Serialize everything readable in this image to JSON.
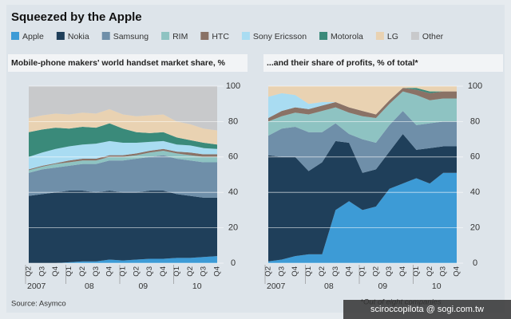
{
  "title": "Squeezed by the Apple",
  "source": "Source: Asymco",
  "footnote": "*Out of eight companies",
  "watermark": "sciroccopilota @ sogi.com.tw",
  "chart_data": [
    {
      "type": "stacked_area",
      "subtitle": "Mobile-phone makers' world handset market share, %",
      "categories": [
        "Q2",
        "Q3",
        "Q4",
        "Q1",
        "Q2",
        "Q3",
        "Q4",
        "Q1",
        "Q2",
        "Q3",
        "Q4",
        "Q1",
        "Q2",
        "Q3",
        "Q4"
      ],
      "category_groups": [
        {
          "label": "2007",
          "count": 3
        },
        {
          "label": "08",
          "count": 4
        },
        {
          "label": "09",
          "count": 4
        },
        {
          "label": "10",
          "count": 4
        }
      ],
      "ylim": [
        0,
        100
      ],
      "yticks": [
        0,
        20,
        40,
        60,
        80,
        100
      ],
      "grid": true,
      "series": [
        {
          "name": "Apple",
          "color": "#3d9bd6",
          "values": [
            0,
            0,
            0,
            0.5,
            1,
            1,
            2,
            1.5,
            2,
            2.5,
            2.5,
            3,
            3,
            3.5,
            4
          ]
        },
        {
          "name": "Nokia",
          "color": "#1f3f5a",
          "values": [
            38,
            39,
            40,
            40.5,
            40,
            39,
            39,
            38.5,
            38,
            38.5,
            38.5,
            36,
            35,
            33.5,
            33
          ]
        },
        {
          "name": "Samsung",
          "color": "#6f8fa9",
          "values": [
            13,
            14,
            14,
            14,
            15,
            16,
            17,
            18,
            19,
            19,
            20,
            20,
            20,
            20,
            20
          ]
        },
        {
          "name": "RIM",
          "color": "#8ec3c2",
          "values": [
            1.5,
            1.5,
            2,
            2,
            2,
            2,
            2,
            2,
            2,
            2.5,
            2.5,
            3,
            3,
            3,
            3
          ]
        },
        {
          "name": "HTC",
          "color": "#8a7266",
          "values": [
            0.5,
            0.5,
            0.5,
            1,
            1,
            1,
            1,
            1,
            1,
            1,
            1,
            1,
            1.5,
            1.5,
            1.5
          ]
        },
        {
          "name": "Sony Ericsson",
          "color": "#a9dcf2",
          "values": [
            7,
            7.5,
            8,
            8,
            8,
            8.5,
            8,
            7,
            6,
            5,
            4.5,
            4,
            4,
            3.5,
            3
          ]
        },
        {
          "name": "Motorola",
          "color": "#3a8a7a",
          "values": [
            14,
            13,
            12,
            10,
            10,
            9,
            10,
            8,
            6,
            5,
            5,
            4,
            3,
            3,
            2.5
          ]
        },
        {
          "name": "LG",
          "color": "#e9d2b2",
          "values": [
            8,
            8,
            8,
            8,
            8,
            8,
            8,
            8,
            9,
            10,
            10,
            9,
            9,
            8,
            8
          ]
        },
        {
          "name": "Other",
          "color": "#c8c9cb",
          "values": [
            18,
            16.5,
            15.5,
            16,
            15,
            15.5,
            13,
            16,
            17,
            16.5,
            16,
            20,
            21.5,
            24,
            25
          ]
        }
      ]
    },
    {
      "type": "stacked_area",
      "subtitle": "...and their share of profits, % of total*",
      "categories": [
        "Q2",
        "Q3",
        "Q4",
        "Q1",
        "Q2",
        "Q3",
        "Q4",
        "Q1",
        "Q2",
        "Q3",
        "Q4",
        "Q1",
        "Q2",
        "Q3",
        "Q4"
      ],
      "category_groups": [
        {
          "label": "2007",
          "count": 3
        },
        {
          "label": "08",
          "count": 4
        },
        {
          "label": "09",
          "count": 4
        },
        {
          "label": "10",
          "count": 4
        }
      ],
      "ylim": [
        0,
        100
      ],
      "yticks": [
        0,
        20,
        40,
        60,
        80,
        100
      ],
      "grid": true,
      "series": [
        {
          "name": "Apple",
          "color": "#3d9bd6",
          "values": [
            1,
            2,
            4,
            5,
            5,
            30,
            35,
            30,
            32,
            42,
            45,
            48,
            45,
            51,
            51
          ]
        },
        {
          "name": "Nokia",
          "color": "#1f3f5a",
          "values": [
            60,
            58,
            56,
            47,
            52,
            39,
            33,
            21,
            21,
            21,
            28,
            16,
            20,
            15,
            15
          ]
        },
        {
          "name": "Samsung",
          "color": "#6f8fa9",
          "values": [
            11,
            16,
            17,
            22,
            17,
            10,
            5,
            19,
            15,
            15,
            13,
            14,
            14,
            14,
            14
          ]
        },
        {
          "name": "RIM",
          "color": "#8ec3c2",
          "values": [
            8,
            7,
            8,
            10,
            12,
            9,
            12,
            13,
            14,
            12,
            11,
            17,
            13,
            13,
            13
          ]
        },
        {
          "name": "HTC",
          "color": "#8a7266",
          "values": [
            2,
            3,
            3,
            3,
            3,
            3,
            3,
            3,
            2,
            2,
            2,
            3,
            4,
            4,
            4
          ]
        },
        {
          "name": "Sony Ericsson",
          "color": "#a9dcf2",
          "values": [
            12,
            10,
            7,
            3,
            2,
            0,
            0,
            0,
            0,
            0,
            0,
            0,
            0,
            0,
            0
          ]
        },
        {
          "name": "Motorola",
          "color": "#3a8a7a",
          "values": [
            0,
            0,
            0,
            0,
            0,
            0,
            0,
            0,
            0,
            0,
            0,
            1,
            1,
            0,
            0
          ]
        },
        {
          "name": "LG",
          "color": "#e9d2b2",
          "values": [
            6,
            4,
            5,
            10,
            9,
            9,
            12,
            14,
            16,
            8,
            1,
            1,
            3,
            3,
            3
          ]
        },
        {
          "name": "Other",
          "color": "#c8c9cb",
          "values": [
            0,
            0,
            0,
            0,
            0,
            0,
            0,
            0,
            0,
            0,
            0,
            0,
            0,
            0,
            0
          ]
        }
      ]
    }
  ]
}
